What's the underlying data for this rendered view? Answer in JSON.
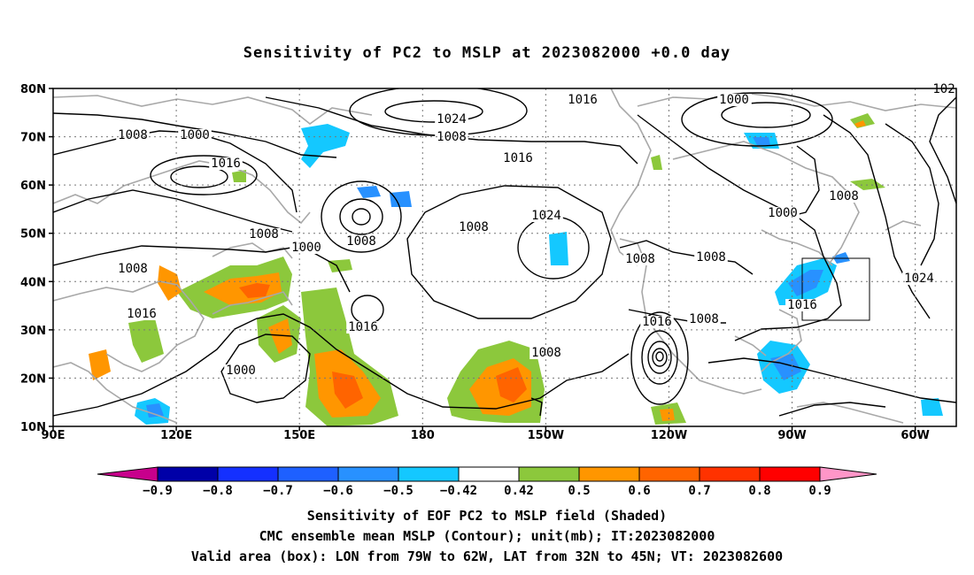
{
  "title": "Sensitivity of PC2 to MSLP at 2023082000 +0.0 day",
  "axes": {
    "lat_labels": [
      "80N",
      "70N",
      "60N",
      "50N",
      "40N",
      "30N",
      "20N",
      "10N"
    ],
    "lon_labels": [
      "90E",
      "120E",
      "150E",
      "180",
      "150W",
      "120W",
      "90W",
      "60W"
    ],
    "lat_values": [
      80,
      70,
      60,
      50,
      40,
      30,
      20,
      10
    ],
    "lon_values": [
      90,
      120,
      150,
      180,
      210,
      240,
      270,
      300
    ],
    "lon_range": [
      90,
      310
    ],
    "lat_range": [
      10,
      80
    ]
  },
  "contour_labels": [
    "1008",
    "1000",
    "1016",
    "1008",
    "1000",
    "1008",
    "1016",
    "1000",
    "1008",
    "1024",
    "1008",
    "1016",
    "1024",
    "1008",
    "1008",
    "1016",
    "1008",
    "1016",
    "1008",
    "1008",
    "1016",
    "1008",
    "1000",
    "1008",
    "1024",
    "1016",
    "1000",
    "1008",
    "1016",
    "1024",
    "102"
  ],
  "colorbar": {
    "labels": [
      "-0.9",
      "-0.8",
      "-0.7",
      "-0.6",
      "-0.5",
      "-0.42",
      "0.42",
      "0.5",
      "0.6",
      "0.7",
      "0.8",
      "0.9"
    ],
    "colors": [
      "#0000a8",
      "#1430ff",
      "#1e60ff",
      "#2891ff",
      "#14c8ff",
      "#ffffff",
      "#8cc83c",
      "#ff9600",
      "#ff6400",
      "#ff3200",
      "#ff0000"
    ],
    "low_end_color": "#c8008c",
    "high_end_color": "#ff96c8"
  },
  "valid_box": {
    "lon_from": 281,
    "lon_to": 298,
    "lat_from": 32,
    "lat_to": 45
  },
  "footer": {
    "line1": "Sensitivity of EOF PC2 to MSLP field (Shaded)",
    "line2": "CMC ensemble mean MSLP (Contour); unit(mb); IT:2023082000",
    "line3": "Valid area (box): LON from 79W to 62W, LAT from 32N to 45N; VT: 2023082600"
  }
}
